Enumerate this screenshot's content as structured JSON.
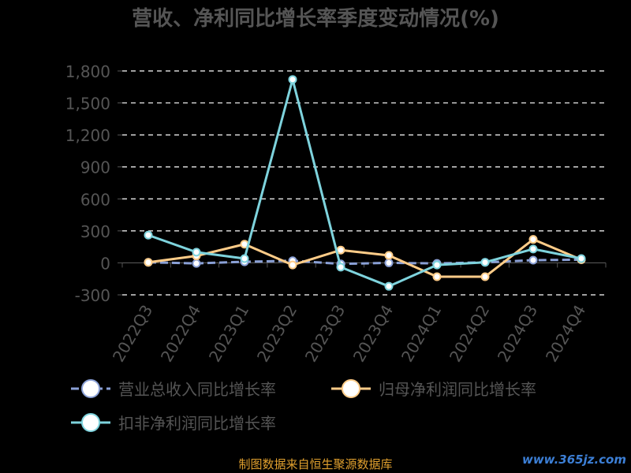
{
  "chart_data": {
    "type": "line",
    "title": "营收、净利同比增长率季度变动情况(%)",
    "categories": [
      "2022Q3",
      "2022Q4",
      "2023Q1",
      "2023Q2",
      "2023Q3",
      "2023Q4",
      "2024Q1",
      "2024Q2",
      "2024Q3",
      "2024Q4"
    ],
    "ylim": [
      -300,
      1800
    ],
    "yticks": [
      -300,
      0,
      300,
      600,
      900,
      1200,
      1500,
      1800
    ],
    "ytick_labels": [
      "-300",
      "0",
      "300",
      "600",
      "900",
      "1,200",
      "1,500",
      "1,800"
    ],
    "grid": true,
    "legend_position": "bottom",
    "series": [
      {
        "name": "营业总收入同比增长率",
        "color": "#8aa0d6",
        "dashed": true,
        "values": [
          5,
          -5,
          10,
          20,
          -10,
          0,
          -5,
          5,
          25,
          30
        ]
      },
      {
        "name": "归母净利润同比增长率",
        "color": "#ffcc88",
        "dashed": false,
        "values": [
          5,
          65,
          175,
          -20,
          120,
          70,
          -130,
          -130,
          220,
          30
        ]
      },
      {
        "name": "扣非净利润同比增长率",
        "color": "#7ed3dd",
        "dashed": false,
        "values": [
          260,
          100,
          40,
          1720,
          -40,
          -220,
          -20,
          5,
          130,
          40
        ]
      }
    ]
  },
  "footer": {
    "source": "制图数据来自恒生聚源数据库",
    "watermark": "www.365jz.com"
  },
  "colors": {
    "background": "#000000",
    "text": "#555555",
    "grid": "#ffffff",
    "source": "#e1a02e"
  }
}
